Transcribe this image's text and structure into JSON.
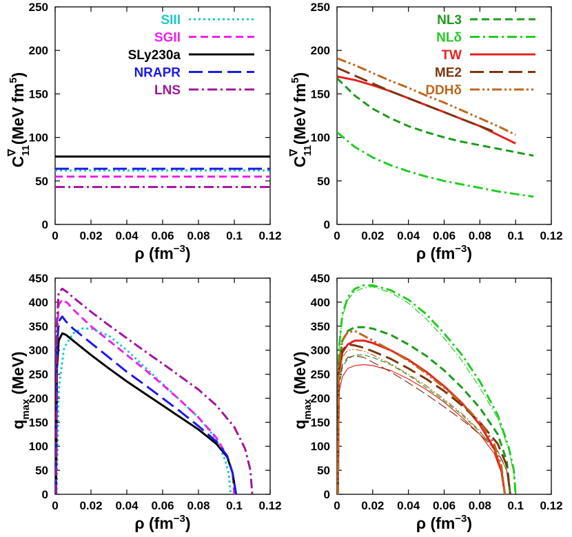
{
  "figure": {
    "colors": {
      "background": "#ffffff",
      "axis": "#000000"
    }
  },
  "chart_data": [
    {
      "panel": "top-left",
      "type": "line",
      "ylabel": {
        "main": "C",
        "sub": "11",
        "sup": "∇",
        "units": " (MeV fm",
        "power": "5",
        "close": ")"
      },
      "xlabel": {
        "main": "ρ (fm",
        "power": "−3",
        "close": ")"
      },
      "xlim": [
        0,
        0.12
      ],
      "ylim": [
        0,
        250
      ],
      "xticks": [
        0,
        0.02,
        0.04,
        0.06,
        0.08,
        0.1,
        0.12
      ],
      "xtick_labels": [
        "0",
        "0.02",
        "0.04",
        "0.06",
        "0.08",
        "0.1",
        "0.12"
      ],
      "yticks": [
        0,
        50,
        100,
        150,
        200,
        250
      ],
      "ytick_labels": [
        "0",
        "50",
        "100",
        "150",
        "200",
        "250"
      ],
      "legend_position": "top-right",
      "series": [
        {
          "name": "SIII",
          "color": "#1cc8c8",
          "dash": "dotted",
          "x": [
            0,
            0.12
          ],
          "y": [
            62,
            62
          ]
        },
        {
          "name": "SGII",
          "color": "#ee22ee",
          "dash": "dashed",
          "x": [
            0,
            0.12
          ],
          "y": [
            55,
            55
          ]
        },
        {
          "name": "SLy230a",
          "color": "#000000",
          "dash": "solid",
          "x": [
            0,
            0.12
          ],
          "y": [
            78,
            78
          ]
        },
        {
          "name": "NRAPR",
          "color": "#1a1ae6",
          "dash": "longdash",
          "x": [
            0,
            0.12
          ],
          "y": [
            64,
            64
          ]
        },
        {
          "name": "LNS",
          "color": "#a0159e",
          "dash": "dashdot",
          "x": [
            0,
            0.12
          ],
          "y": [
            43,
            43
          ]
        }
      ]
    },
    {
      "panel": "top-right",
      "type": "line",
      "ylabel": {
        "main": "C",
        "sub": "11",
        "sup": "∇",
        "units": " (MeV fm",
        "power": "5",
        "close": ")"
      },
      "xlabel": {
        "main": "ρ (fm",
        "power": "−3",
        "close": ")"
      },
      "xlim": [
        0,
        0.12
      ],
      "ylim": [
        0,
        250
      ],
      "xticks": [
        0,
        0.02,
        0.04,
        0.06,
        0.08,
        0.1,
        0.12
      ],
      "xtick_labels": [
        "0",
        "0.02",
        "0.04",
        "0.06",
        "0.08",
        "0.1",
        "0.12"
      ],
      "yticks": [
        0,
        50,
        100,
        150,
        200,
        250
      ],
      "ytick_labels": [
        "0",
        "50",
        "100",
        "150",
        "200",
        "250"
      ],
      "legend_position": "top-right",
      "series": [
        {
          "name": "NL3",
          "color": "#1e9a1e",
          "dash": "dashed",
          "x": [
            0,
            0.01,
            0.02,
            0.03,
            0.04,
            0.05,
            0.06,
            0.07,
            0.08,
            0.09,
            0.1,
            0.11
          ],
          "y": [
            168,
            148,
            133,
            122,
            113,
            106,
            100,
            95,
            91,
            87,
            83,
            79
          ]
        },
        {
          "name": "NLδ",
          "color": "#22cc22",
          "dash": "dashdot",
          "x": [
            0,
            0.01,
            0.02,
            0.03,
            0.04,
            0.05,
            0.06,
            0.07,
            0.08,
            0.09,
            0.1,
            0.11
          ],
          "y": [
            106,
            89,
            77,
            68,
            61,
            55,
            50,
            46,
            42,
            38,
            35,
            32
          ]
        },
        {
          "name": "TW",
          "color": "#e62020",
          "dash": "solid",
          "x": [
            0,
            0.01,
            0.02,
            0.03,
            0.04,
            0.05,
            0.06,
            0.07,
            0.08,
            0.09,
            0.1
          ],
          "y": [
            170,
            166,
            160,
            153,
            145,
            137,
            129,
            121,
            113,
            103,
            93
          ]
        },
        {
          "name": "ME2",
          "color": "#7a3612",
          "dash": "longdash",
          "x": [
            0,
            0.01,
            0.02,
            0.03,
            0.04,
            0.05,
            0.06,
            0.07,
            0.08,
            0.09
          ],
          "y": [
            180,
            171,
            162,
            153,
            145,
            137,
            129,
            121,
            113,
            105
          ]
        },
        {
          "name": "DDHδ",
          "color": "#c0661c",
          "dash": "dashdotdot",
          "x": [
            0,
            0.01,
            0.02,
            0.03,
            0.04,
            0.05,
            0.06,
            0.07,
            0.08,
            0.09,
            0.1
          ],
          "y": [
            191,
            183,
            174,
            165,
            157,
            148,
            140,
            131,
            122,
            113,
            103
          ]
        }
      ]
    },
    {
      "panel": "bottom-left",
      "type": "line",
      "ylabel": {
        "main": "q",
        "sub": "max",
        "units": " (MeV)"
      },
      "xlabel": {
        "main": "ρ (fm",
        "power": "−3",
        "close": ")"
      },
      "xlim": [
        0,
        0.12
      ],
      "ylim": [
        0,
        450
      ],
      "xticks": [
        0,
        0.02,
        0.04,
        0.06,
        0.08,
        0.1,
        0.12
      ],
      "xtick_labels": [
        "0",
        "0.02",
        "0.04",
        "0.06",
        "0.08",
        "0.1",
        "0.12"
      ],
      "yticks": [
        0,
        50,
        100,
        150,
        200,
        250,
        300,
        350,
        400,
        450
      ],
      "ytick_labels": [
        "0",
        "50",
        "100",
        "150",
        "200",
        "250",
        "300",
        "350",
        "400",
        "450"
      ],
      "series": [
        {
          "name": "SIII",
          "color": "#1cc8c8",
          "dash": "dotted",
          "x": [
            0.0008,
            0.002,
            0.005,
            0.01,
            0.015,
            0.02,
            0.03,
            0.04,
            0.05,
            0.06,
            0.07,
            0.08,
            0.09,
            0.095,
            0.097,
            0.098
          ],
          "y": [
            0,
            220,
            305,
            335,
            345,
            345,
            330,
            300,
            265,
            230,
            195,
            160,
            115,
            70,
            40,
            0
          ]
        },
        {
          "name": "SGII",
          "color": "#ee22ee",
          "dash": "dashed",
          "x": [
            0.0005,
            0.001,
            0.002,
            0.004,
            0.007,
            0.01,
            0.02,
            0.03,
            0.04,
            0.05,
            0.06,
            0.07,
            0.08,
            0.09,
            0.096,
            0.099,
            0.1
          ],
          "y": [
            0,
            330,
            395,
            405,
            398,
            385,
            350,
            320,
            290,
            260,
            228,
            195,
            160,
            118,
            80,
            45,
            0
          ]
        },
        {
          "name": "SLy230a",
          "color": "#000000",
          "dash": "solid",
          "x": [
            0.0005,
            0.001,
            0.002,
            0.004,
            0.006,
            0.01,
            0.02,
            0.03,
            0.04,
            0.05,
            0.06,
            0.07,
            0.08,
            0.09,
            0.096,
            0.099,
            0.101
          ],
          "y": [
            0,
            260,
            320,
            335,
            332,
            320,
            290,
            262,
            235,
            210,
            185,
            160,
            135,
            105,
            78,
            45,
            0
          ]
        },
        {
          "name": "NRAPR",
          "color": "#1a1ae6",
          "dash": "longdash",
          "x": [
            0.0005,
            0.001,
            0.002,
            0.004,
            0.006,
            0.01,
            0.02,
            0.03,
            0.04,
            0.05,
            0.06,
            0.07,
            0.08,
            0.09,
            0.096,
            0.099,
            0.101
          ],
          "y": [
            0,
            300,
            360,
            370,
            360,
            345,
            315,
            285,
            255,
            228,
            200,
            172,
            142,
            110,
            80,
            45,
            0
          ]
        },
        {
          "name": "LNS",
          "color": "#a0159e",
          "dash": "dashdot",
          "x": [
            0.0005,
            0.001,
            0.002,
            0.004,
            0.007,
            0.01,
            0.02,
            0.03,
            0.04,
            0.05,
            0.06,
            0.07,
            0.08,
            0.09,
            0.1,
            0.106,
            0.109,
            0.11
          ],
          "y": [
            0,
            360,
            420,
            428,
            420,
            410,
            380,
            352,
            325,
            298,
            272,
            245,
            218,
            185,
            140,
            95,
            50,
            0
          ]
        }
      ]
    },
    {
      "panel": "bottom-right",
      "type": "line",
      "ylabel": {
        "main": "q",
        "sub": "max",
        "units": " (MeV)"
      },
      "xlabel": {
        "main": "ρ (fm",
        "power": "−3",
        "close": ")"
      },
      "xlim": [
        0,
        0.12
      ],
      "ylim": [
        0,
        450
      ],
      "xticks": [
        0,
        0.02,
        0.04,
        0.06,
        0.08,
        0.1,
        0.12
      ],
      "xtick_labels": [
        "0",
        "0.02",
        "0.04",
        "0.06",
        "0.08",
        "0.1",
        "0.12"
      ],
      "yticks": [
        0,
        50,
        100,
        150,
        200,
        250,
        300,
        350,
        400,
        450
      ],
      "ytick_labels": [
        "0",
        "50",
        "100",
        "150",
        "200",
        "250",
        "300",
        "350",
        "400",
        "450"
      ],
      "series": [
        {
          "name": "NLδ",
          "color": "#22cc22",
          "dash": "dashdot",
          "x": [
            0.0005,
            0.001,
            0.003,
            0.006,
            0.01,
            0.015,
            0.02,
            0.03,
            0.04,
            0.05,
            0.06,
            0.07,
            0.08,
            0.09,
            0.096,
            0.099,
            0.1
          ],
          "y": [
            0,
            300,
            375,
            410,
            428,
            435,
            435,
            425,
            405,
            375,
            335,
            290,
            235,
            165,
            100,
            50,
            0
          ]
        },
        {
          "name": "NLδ (thin)",
          "color": "#22cc22",
          "dash": "dashdot",
          "thin": true,
          "x": [
            0.0005,
            0.001,
            0.003,
            0.006,
            0.01,
            0.015,
            0.02,
            0.03,
            0.04,
            0.05,
            0.06,
            0.07,
            0.08,
            0.09,
            0.096,
            0.099,
            0.1
          ],
          "y": [
            0,
            300,
            370,
            405,
            422,
            430,
            432,
            420,
            398,
            365,
            325,
            278,
            222,
            158,
            95,
            45,
            0
          ]
        },
        {
          "name": "NL3",
          "color": "#1e9a1e",
          "dash": "dashed",
          "x": [
            0.0005,
            0.001,
            0.003,
            0.006,
            0.01,
            0.015,
            0.02,
            0.03,
            0.04,
            0.05,
            0.06,
            0.07,
            0.08,
            0.09,
            0.095,
            0.097
          ],
          "y": [
            0,
            270,
            320,
            340,
            348,
            348,
            345,
            332,
            312,
            288,
            258,
            222,
            180,
            125,
            70,
            0
          ]
        },
        {
          "name": "NL3 (thin)",
          "color": "#1e9a1e",
          "dash": "dashed",
          "thin": true,
          "x": [
            0.0005,
            0.001,
            0.003,
            0.006,
            0.01,
            0.015,
            0.02,
            0.03,
            0.04,
            0.05,
            0.06,
            0.07,
            0.08,
            0.09,
            0.095,
            0.097
          ],
          "y": [
            0,
            220,
            265,
            282,
            290,
            290,
            285,
            270,
            248,
            222,
            195,
            165,
            130,
            90,
            50,
            0
          ]
        },
        {
          "name": "TW",
          "color": "#e62020",
          "dash": "solid",
          "x": [
            0.0005,
            0.001,
            0.003,
            0.006,
            0.01,
            0.015,
            0.02,
            0.03,
            0.04,
            0.05,
            0.06,
            0.07,
            0.08,
            0.088,
            0.092,
            0.094
          ],
          "y": [
            0,
            250,
            295,
            312,
            320,
            320,
            315,
            300,
            280,
            255,
            225,
            190,
            145,
            95,
            50,
            0
          ]
        },
        {
          "name": "TW (thin)",
          "color": "#e62020",
          "dash": "solid",
          "thin": true,
          "x": [
            0.0005,
            0.001,
            0.003,
            0.006,
            0.01,
            0.015,
            0.02,
            0.03,
            0.04,
            0.05,
            0.06,
            0.07,
            0.08,
            0.088,
            0.092,
            0.094
          ],
          "y": [
            0,
            210,
            245,
            262,
            268,
            270,
            268,
            258,
            240,
            218,
            192,
            160,
            125,
            85,
            45,
            0
          ]
        },
        {
          "name": "ME2",
          "color": "#7a3612",
          "dash": "longdash",
          "x": [
            0.0005,
            0.001,
            0.003,
            0.006,
            0.01,
            0.015,
            0.02,
            0.03,
            0.04,
            0.05,
            0.06,
            0.07,
            0.08,
            0.09,
            0.095,
            0.097
          ],
          "y": [
            0,
            255,
            300,
            312,
            310,
            305,
            298,
            282,
            262,
            240,
            215,
            185,
            150,
            105,
            60,
            0
          ]
        },
        {
          "name": "ME2 (thin)",
          "color": "#7a3612",
          "dash": "longdash",
          "thin": true,
          "x": [
            0.0005,
            0.001,
            0.003,
            0.006,
            0.01,
            0.015,
            0.02,
            0.03,
            0.04,
            0.05,
            0.06,
            0.07,
            0.08,
            0.09,
            0.095,
            0.097
          ],
          "y": [
            0,
            230,
            270,
            285,
            288,
            285,
            275,
            255,
            232,
            208,
            182,
            155,
            125,
            88,
            50,
            0
          ]
        },
        {
          "name": "DDHδ",
          "color": "#c0661c",
          "dash": "dashdotdot",
          "x": [
            0.0005,
            0.001,
            0.003,
            0.006,
            0.01,
            0.015,
            0.02,
            0.03,
            0.04,
            0.05,
            0.06,
            0.07,
            0.08,
            0.088,
            0.092,
            0.094
          ],
          "y": [
            0,
            270,
            320,
            338,
            340,
            330,
            320,
            300,
            278,
            252,
            222,
            190,
            150,
            105,
            60,
            0
          ]
        },
        {
          "name": "DDHδ (thin)",
          "color": "#c0661c",
          "dash": "dashdotdot",
          "thin": true,
          "x": [
            0.0005,
            0.001,
            0.003,
            0.006,
            0.01,
            0.015,
            0.02,
            0.03,
            0.04,
            0.05,
            0.06,
            0.07,
            0.08,
            0.088,
            0.092,
            0.094
          ],
          "y": [
            0,
            240,
            285,
            300,
            302,
            298,
            290,
            272,
            250,
            226,
            198,
            168,
            132,
            92,
            52,
            0
          ]
        }
      ]
    }
  ]
}
